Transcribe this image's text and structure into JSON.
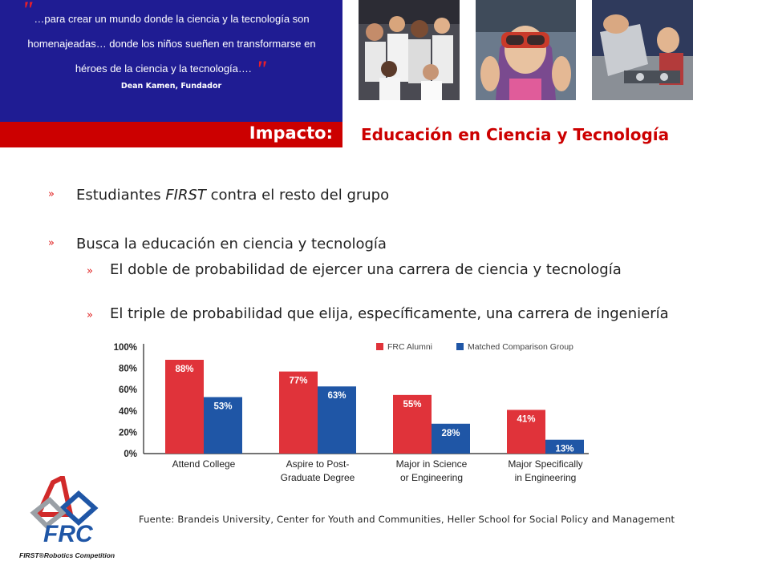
{
  "quote": {
    "text_line1": "…para crear un mundo donde la ciencia y la tecnología son",
    "text_line2": "homenajeadas… donde los niños sueñen en transformarse en",
    "text_line3": "héroes de la ciencia y la tecnología….",
    "author": "Dean Kamen, Fundador"
  },
  "impact_label": "Impacto:",
  "headline": "Educación en Ciencia y Tecnología",
  "bullets": {
    "b1_pre": "Estudiantes ",
    "b1_em": "FIRST",
    "b1_post": " contra el resto del grupo",
    "b2": "Busca la educación en ciencia y tecnología",
    "b2a": "El doble de probabilidad de ejercer una carrera de ciencia y tecnología",
    "b2b": "El triple de probabilidad que elija, específicamente, una carrera de ingeniería"
  },
  "chart_data": {
    "type": "bar",
    "categories": [
      [
        "Attend College"
      ],
      [
        "Aspire to Post-",
        "Graduate Degree"
      ],
      [
        "Major in Science",
        "or Engineering"
      ],
      [
        "Major Specifically",
        "in Engineering"
      ]
    ],
    "series": [
      {
        "name": "FRC Alumni",
        "color": "#e0333a",
        "values": [
          88,
          77,
          55,
          41
        ]
      },
      {
        "name": "Matched Comparison Group",
        "color": "#1f56a6",
        "values": [
          53,
          63,
          28,
          13
        ]
      }
    ],
    "data_labels": [
      [
        "88%",
        "77%",
        "55%",
        "41%"
      ],
      [
        "53%",
        "63%",
        "28%",
        "13%"
      ]
    ],
    "yticks": [
      0,
      20,
      40,
      60,
      80,
      100
    ],
    "ytick_labels": [
      "0%",
      "20%",
      "40%",
      "60%",
      "80%",
      "100%"
    ],
    "ylim": [
      0,
      100
    ],
    "legend_position": "top-right",
    "grid": false
  },
  "source": "Fuente: Brandeis University, Center for Youth and Communities, Heller School for Social Policy and Management",
  "logo": {
    "name": "FRC",
    "tagline": "FIRST®Robotics Competition"
  },
  "colors": {
    "navy": "#1f1c93",
    "red": "#cc0000",
    "frc_red": "#e0333a",
    "frc_blue": "#1f56a6"
  }
}
